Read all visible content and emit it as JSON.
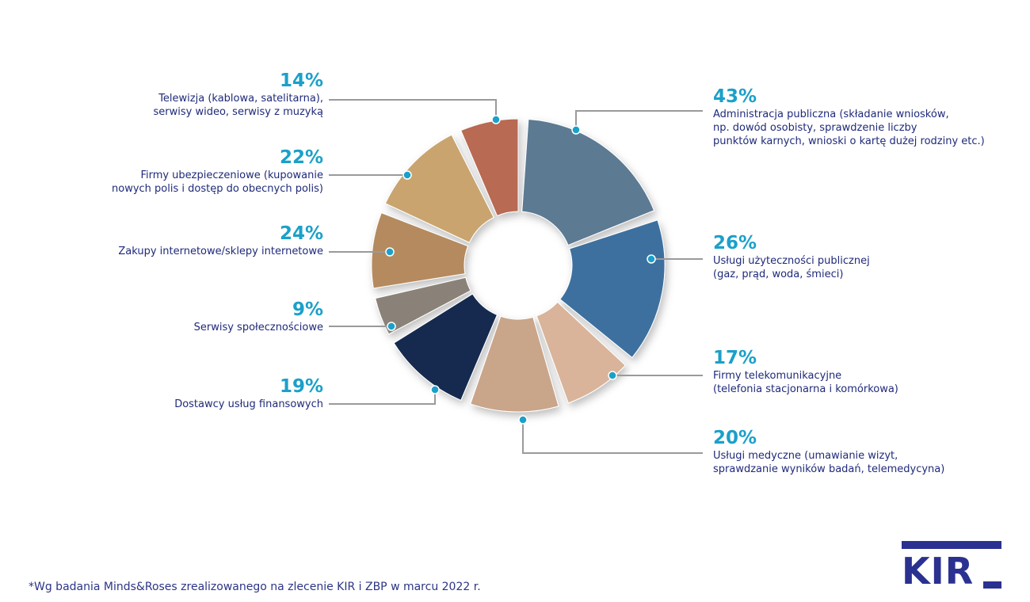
{
  "chart_data": {
    "type": "pie",
    "variant": "donut",
    "segments": [
      {
        "value": "43%",
        "label": "Administracja publiczna (składanie wniosków,\nnp. dowód osobisty, sprawdzenie liczby\npunktów karnych, wnioski o kartę dużej rodziny etc.)",
        "side": "right",
        "color": "#5d7a93"
      },
      {
        "value": "26%",
        "label": "Usługi użyteczności publicznej\n(gaz, prąd, woda, śmieci)",
        "side": "right",
        "color": "#3d6f9e"
      },
      {
        "value": "17%",
        "label": "Firmy telekomunikacyjne\n(telefonia stacjonarna i komórkowa)",
        "side": "right",
        "color": "#d9b49a"
      },
      {
        "value": "20%",
        "label": "Usługi medyczne (umawianie wizyt,\nsprawdzanie wyników badań, telemedycyna)",
        "side": "right",
        "color": "#c9a58a"
      },
      {
        "value": "19%",
        "label": "Dostawcy usług finansowych",
        "side": "left",
        "color": "#132a4f"
      },
      {
        "value": "9%",
        "label": "Serwisy społecznościowe",
        "side": "left",
        "color": "#8a8278"
      },
      {
        "value": "24%",
        "label": "Zakupy internetowe/sklepy internetowe",
        "side": "left",
        "color": "#b58a5e"
      },
      {
        "value": "22%",
        "label": "Firmy ubezpieczeniowe (kupowanie\nnowych polis i dostęp do obecnych polis)",
        "side": "left",
        "color": "#c9a46e"
      },
      {
        "value": "14%",
        "label": "Telewizja (kablowa, satelitarna),\nserwisy wideo, serwisy z muzyką",
        "side": "left",
        "color": "#b86a52"
      }
    ]
  },
  "footnote": "*Wg badania Minds&Roses zrealizowanego na zlecenie KIR i ZBP w marcu 2022 r.",
  "logo": {
    "text": "KIR"
  },
  "colors": {
    "accent": "#1ba0c9",
    "text": "#1f2a7a",
    "leader": "#9a9a9a",
    "logo": "#2b3190"
  }
}
